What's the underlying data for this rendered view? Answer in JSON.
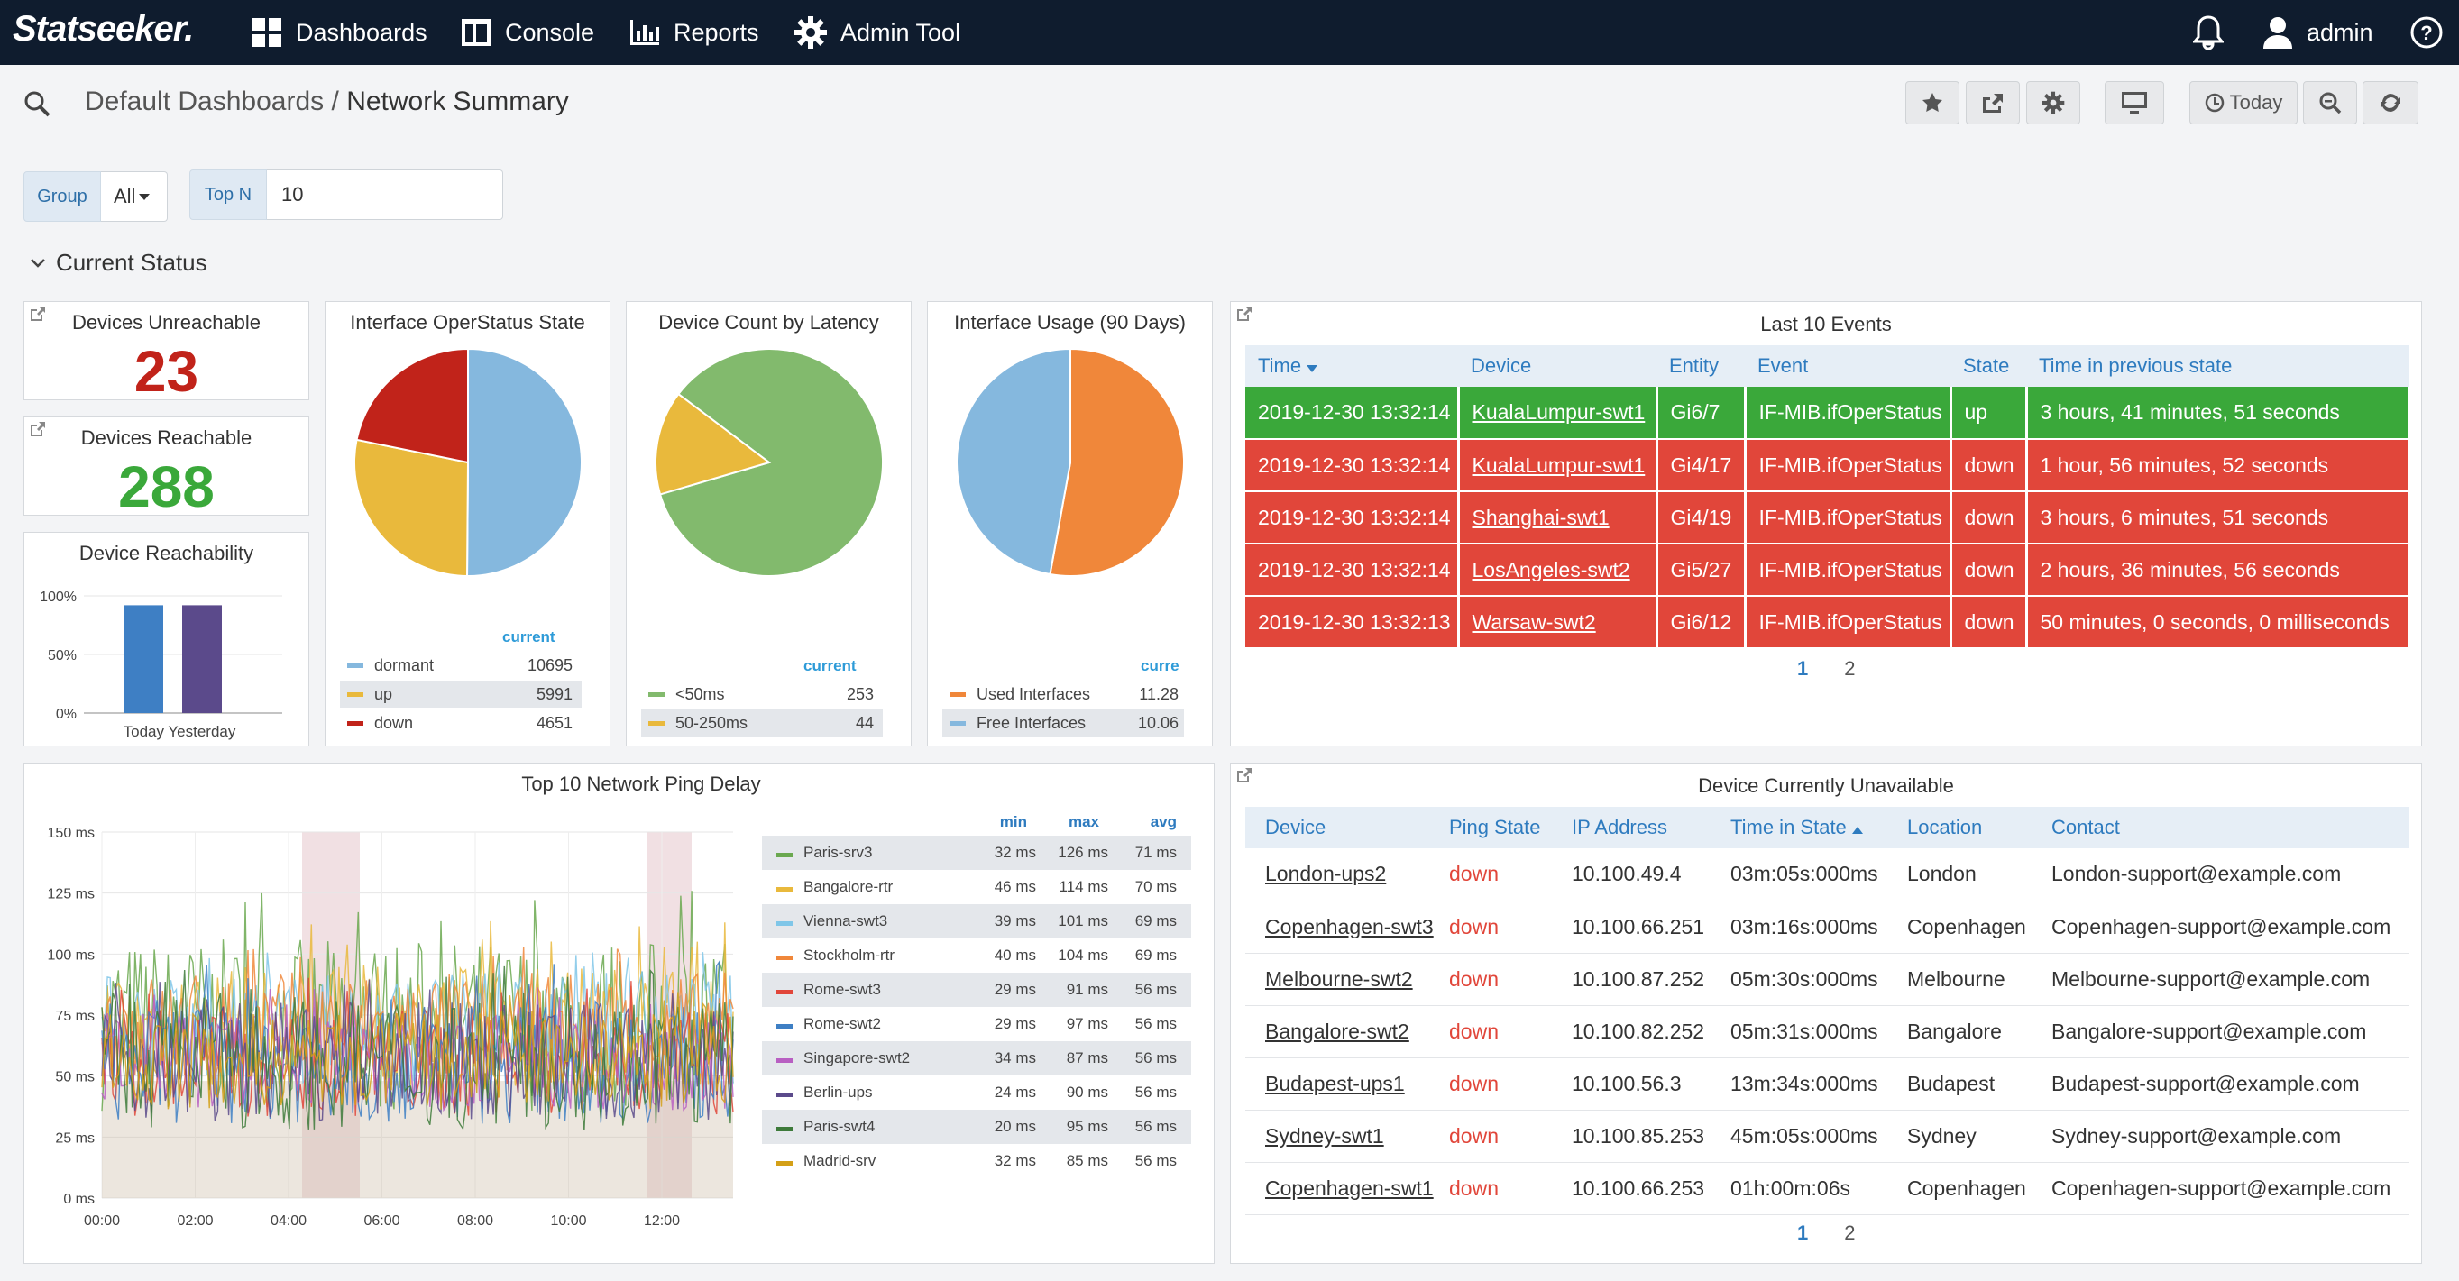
{
  "nav": {
    "brand": "Statseeker.",
    "items": [
      "Dashboards",
      "Console",
      "Reports",
      "Admin Tool"
    ],
    "user": "admin"
  },
  "breadcrumb": {
    "parent": "Default Dashboards",
    "sep": "/",
    "current": "Network Summary"
  },
  "toolbar": {
    "today_label": "Today"
  },
  "filters": {
    "group_label": "Group",
    "group_value": "All",
    "topn_label": "Top N",
    "topn_value": "10"
  },
  "section_title": "Current Status",
  "colors": {
    "navy": "#0f1c2e",
    "green": "#3aa83a",
    "red": "#e1463a",
    "blue": "#2e7bbf"
  },
  "unreachable": {
    "title": "Devices Unreachable",
    "value": "23"
  },
  "reachable": {
    "title": "Devices Reachable",
    "value": "288"
  },
  "reachability": {
    "title": "Device Reachability",
    "chart_data": {
      "type": "bar",
      "categories": [
        "Today",
        "Yesterday"
      ],
      "values": [
        92,
        92
      ],
      "yticks": [
        "100%",
        "50%",
        "0%"
      ],
      "ylim": [
        0,
        100
      ],
      "colors": [
        "#3e7fc4",
        "#5b4a8b"
      ]
    }
  },
  "operstatus": {
    "title": "Interface OperStatus State",
    "cur_label": "current",
    "chart_data": {
      "type": "pie",
      "labels": [
        "dormant",
        "up",
        "down"
      ],
      "values": [
        10695,
        5991,
        4651
      ],
      "display": [
        "10695",
        "5991",
        "4651"
      ],
      "colors": [
        "#85b8de",
        "#e9b93c",
        "#c1231a"
      ]
    }
  },
  "latency": {
    "title": "Device Count by Latency",
    "cur_label": "current",
    "chart_data": {
      "type": "pie",
      "labels": [
        "<50ms",
        "50-250ms"
      ],
      "values": [
        253,
        44
      ],
      "display": [
        "253",
        "44"
      ],
      "colors": [
        "#82ba6d",
        "#e9b93c"
      ]
    }
  },
  "usage": {
    "title": "Interface Usage (90 Days)",
    "cur_label": "curre",
    "chart_data": {
      "type": "pie",
      "labels": [
        "Used Interfaces",
        "Free Interfaces"
      ],
      "values": [
        11.28,
        10.06
      ],
      "display": [
        "11.28",
        "10.06"
      ],
      "colors": [
        "#f0873a",
        "#85b8de"
      ]
    }
  },
  "events": {
    "title": "Last 10 Events",
    "columns": [
      "Time",
      "Device",
      "Entity",
      "Event",
      "State",
      "Time in previous state"
    ],
    "rows": [
      {
        "time": "2019-12-30 13:32:14",
        "device": "KualaLumpur-swt1",
        "entity": "Gi6/7",
        "event": "IF-MIB.ifOperStatus",
        "state": "up",
        "prev": "3 hours, 41 minutes, 51 seconds",
        "color": "#3aa83a"
      },
      {
        "time": "2019-12-30 13:32:14",
        "device": "KualaLumpur-swt1",
        "entity": "Gi4/17",
        "event": "IF-MIB.ifOperStatus",
        "state": "down",
        "prev": "1 hour, 56 minutes, 52 seconds",
        "color": "#e1463a"
      },
      {
        "time": "2019-12-30 13:32:14",
        "device": "Shanghai-swt1",
        "entity": "Gi4/19",
        "event": "IF-MIB.ifOperStatus",
        "state": "down",
        "prev": "3 hours, 6 minutes, 51 seconds",
        "color": "#e1463a"
      },
      {
        "time": "2019-12-30 13:32:14",
        "device": "LosAngeles-swt2",
        "entity": "Gi5/27",
        "event": "IF-MIB.ifOperStatus",
        "state": "down",
        "prev": "2 hours, 36 minutes, 56 seconds",
        "color": "#e1463a"
      },
      {
        "time": "2019-12-30 13:32:13",
        "device": "Warsaw-swt2",
        "entity": "Gi6/12",
        "event": "IF-MIB.ifOperStatus",
        "state": "down",
        "prev": "50 minutes, 0 seconds, 0 milliseconds",
        "color": "#e1463a"
      }
    ],
    "pages": [
      "1",
      "2"
    ]
  },
  "ping": {
    "title": "Top 10 Network Ping Delay",
    "legend_headers": [
      "min",
      "max",
      "avg"
    ],
    "chart_data": {
      "type": "line",
      "x_ticks": [
        "00:00",
        "02:00",
        "04:00",
        "06:00",
        "08:00",
        "10:00",
        "12:00"
      ],
      "y_ticks": [
        "150 ms",
        "125 ms",
        "100 ms",
        "75 ms",
        "50 ms",
        "25 ms",
        "0 ms"
      ],
      "ylim": [
        0,
        150
      ],
      "series": [
        {
          "name": "Paris-srv3",
          "min": "32 ms",
          "max": "126 ms",
          "avg": "71 ms",
          "color": "#6aa84f"
        },
        {
          "name": "Bangalore-rtr",
          "min": "46 ms",
          "max": "114 ms",
          "avg": "70 ms",
          "color": "#e9b93c"
        },
        {
          "name": "Vienna-swt3",
          "min": "39 ms",
          "max": "101 ms",
          "avg": "69 ms",
          "color": "#7fc6e8"
        },
        {
          "name": "Stockholm-rtr",
          "min": "40 ms",
          "max": "104 ms",
          "avg": "69 ms",
          "color": "#f0873a"
        },
        {
          "name": "Rome-swt3",
          "min": "29 ms",
          "max": "91 ms",
          "avg": "56 ms",
          "color": "#e1463a"
        },
        {
          "name": "Rome-swt2",
          "min": "29 ms",
          "max": "97 ms",
          "avg": "56 ms",
          "color": "#3e7fc4"
        },
        {
          "name": "Singapore-swt2",
          "min": "34 ms",
          "max": "87 ms",
          "avg": "56 ms",
          "color": "#b85fc2"
        },
        {
          "name": "Berlin-ups",
          "min": "24 ms",
          "max": "90 ms",
          "avg": "56 ms",
          "color": "#5b4a8b"
        },
        {
          "name": "Paris-swt4",
          "min": "20 ms",
          "max": "95 ms",
          "avg": "56 ms",
          "color": "#3d7a3a"
        },
        {
          "name": "Madrid-srv",
          "min": "32 ms",
          "max": "85 ms",
          "avg": "56 ms",
          "color": "#d4a017"
        }
      ]
    }
  },
  "unavailable": {
    "title": "Device Currently Unavailable",
    "columns": [
      "Device",
      "Ping State",
      "IP Address",
      "Time in State",
      "Location",
      "Contact"
    ],
    "rows": [
      {
        "device": "London-ups2",
        "state": "down",
        "ip": "10.100.49.4",
        "tis": "03m:05s:000ms",
        "loc": "London",
        "contact": "London-support@example.com"
      },
      {
        "device": "Copenhagen-swt3",
        "state": "down",
        "ip": "10.100.66.251",
        "tis": "03m:16s:000ms",
        "loc": "Copenhagen",
        "contact": "Copenhagen-support@example.com"
      },
      {
        "device": "Melbourne-swt2",
        "state": "down",
        "ip": "10.100.87.252",
        "tis": "05m:30s:000ms",
        "loc": "Melbourne",
        "contact": "Melbourne-support@example.com"
      },
      {
        "device": "Bangalore-swt2",
        "state": "down",
        "ip": "10.100.82.252",
        "tis": "05m:31s:000ms",
        "loc": "Bangalore",
        "contact": "Bangalore-support@example.com"
      },
      {
        "device": "Budapest-ups1",
        "state": "down",
        "ip": "10.100.56.3",
        "tis": "13m:34s:000ms",
        "loc": "Budapest",
        "contact": "Budapest-support@example.com"
      },
      {
        "device": "Sydney-swt1",
        "state": "down",
        "ip": "10.100.85.253",
        "tis": "45m:05s:000ms",
        "loc": "Sydney",
        "contact": "Sydney-support@example.com"
      },
      {
        "device": "Copenhagen-swt1",
        "state": "down",
        "ip": "10.100.66.253",
        "tis": "01h:00m:06s",
        "loc": "Copenhagen",
        "contact": "Copenhagen-support@example.com"
      }
    ],
    "pages": [
      "1",
      "2"
    ]
  }
}
